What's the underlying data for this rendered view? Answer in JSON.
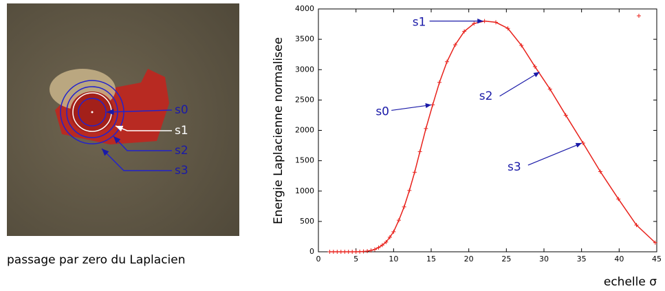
{
  "image": {
    "labels": [
      "s0",
      "s1",
      "s2",
      "s3"
    ],
    "caption": "passage par zero du Laplacien"
  },
  "chart_data": {
    "type": "line",
    "x_label": "echelle σ",
    "y_label": "Energie Laplacienne normalisee",
    "x": [
      1.5,
      2,
      2.5,
      3,
      3.5,
      4,
      4.5,
      5,
      5.5,
      6,
      6.5,
      7,
      7.5,
      8,
      8.5,
      9,
      9.5,
      10,
      10.7,
      11.4,
      12.1,
      12.8,
      13.5,
      14.3,
      15.2,
      16.1,
      17.1,
      18.2,
      19.4,
      20.7,
      22.1,
      23.6,
      25.2,
      27.0,
      28.8,
      30.8,
      32.9,
      35.2,
      37.5,
      39.9,
      42.3,
      44.8
    ],
    "series": [
      {
        "color": "#e8201a",
        "values": [
          0,
          0,
          0,
          0,
          0,
          0,
          0,
          0,
          2,
          5,
          12,
          22,
          40,
          70,
          110,
          160,
          240,
          330,
          520,
          740,
          1010,
          1310,
          1650,
          2030,
          2420,
          2790,
          3130,
          3410,
          3630,
          3760,
          3800,
          3780,
          3680,
          3400,
          3050,
          2680,
          2250,
          1790,
          1320,
          870,
          440,
          150
        ]
      }
    ],
    "xlim": [
      0,
      45
    ],
    "xticks": [
      0,
      5,
      10,
      15,
      20,
      25,
      30,
      35,
      40,
      45
    ],
    "ylim": [
      0,
      4000
    ],
    "yticks": [
      0,
      500,
      1000,
      1500,
      2000,
      2500,
      3000,
      3500,
      4000
    ],
    "legend": "top-right",
    "annotations": [
      {
        "text": "s0",
        "x": 15.2,
        "y": 2420
      },
      {
        "text": "s1",
        "x": 22.1,
        "y": 3800
      },
      {
        "text": "s2",
        "x": 29.6,
        "y": 2960
      },
      {
        "text": "s3",
        "x": 35.2,
        "y": 1790
      }
    ]
  }
}
